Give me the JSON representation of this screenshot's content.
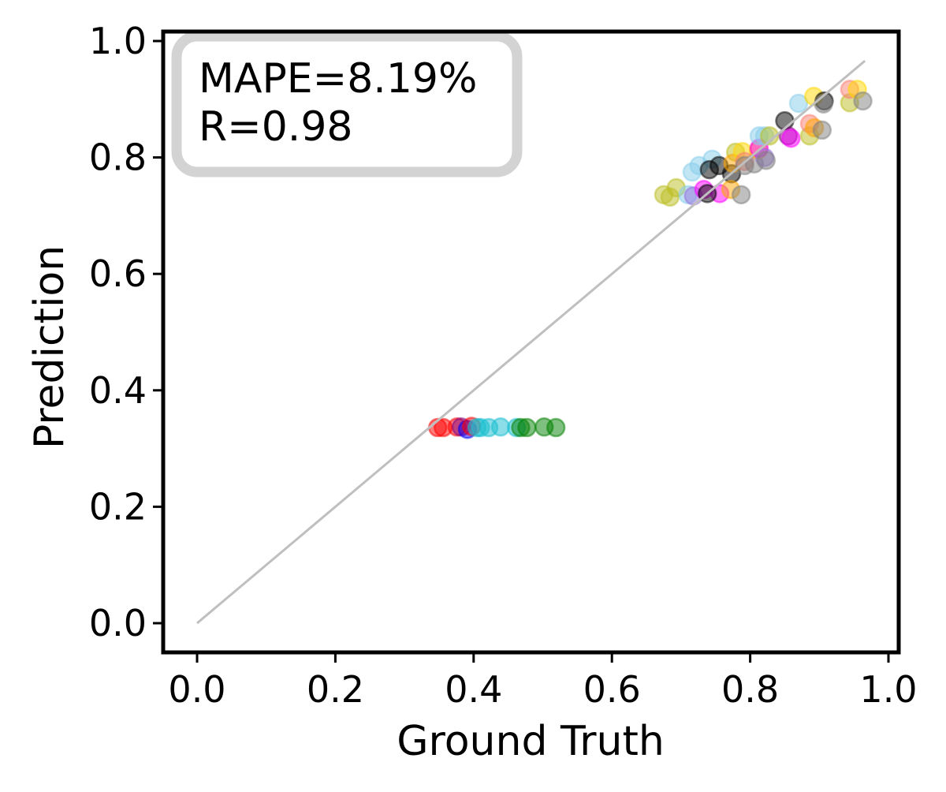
{
  "chart_data": {
    "type": "scatter",
    "xlabel": "Ground Truth",
    "ylabel": "Prediction",
    "xlim": [
      -0.05,
      1.015
    ],
    "ylim": [
      -0.05,
      1.016
    ],
    "xticks": [
      "0.0",
      "0.2",
      "0.4",
      "0.6",
      "0.8",
      "1.0"
    ],
    "yticks": [
      "0.0",
      "0.2",
      "0.4",
      "0.6",
      "0.8",
      "1.0"
    ],
    "grid": false,
    "annotation": {
      "line1": "MAPE=8.19%",
      "line2": "R=0.98",
      "placement": "top-left",
      "border_color": "#d3d3d3"
    },
    "reference_line": {
      "x": [
        0.0,
        0.966
      ],
      "y": [
        0.0,
        0.966
      ],
      "color": "#bfbfbf"
    },
    "marker_alpha": 0.5,
    "points": [
      {
        "x": 0.348,
        "y": 0.336,
        "color": "#ff0000"
      },
      {
        "x": 0.356,
        "y": 0.336,
        "color": "#ff0000"
      },
      {
        "x": 0.376,
        "y": 0.337,
        "color": "#ff0000"
      },
      {
        "x": 0.382,
        "y": 0.337,
        "color": "#800080"
      },
      {
        "x": 0.391,
        "y": 0.333,
        "color": "#0000ff"
      },
      {
        "x": 0.397,
        "y": 0.338,
        "color": "#ff0000"
      },
      {
        "x": 0.405,
        "y": 0.336,
        "color": "#17becf"
      },
      {
        "x": 0.41,
        "y": 0.336,
        "color": "#17becf"
      },
      {
        "x": 0.422,
        "y": 0.336,
        "color": "#17becf"
      },
      {
        "x": 0.439,
        "y": 0.337,
        "color": "#17becf"
      },
      {
        "x": 0.462,
        "y": 0.336,
        "color": "#17becf"
      },
      {
        "x": 0.468,
        "y": 0.336,
        "color": "#008000"
      },
      {
        "x": 0.477,
        "y": 0.336,
        "color": "#008000"
      },
      {
        "x": 0.502,
        "y": 0.337,
        "color": "#008000"
      },
      {
        "x": 0.519,
        "y": 0.336,
        "color": "#008000"
      },
      {
        "x": 0.675,
        "y": 0.736,
        "color": "#bcbd22"
      },
      {
        "x": 0.684,
        "y": 0.732,
        "color": "#bcbd22"
      },
      {
        "x": 0.693,
        "y": 0.748,
        "color": "#bcbd22"
      },
      {
        "x": 0.71,
        "y": 0.736,
        "color": "#87ceeb"
      },
      {
        "x": 0.716,
        "y": 0.775,
        "color": "#87ceeb"
      },
      {
        "x": 0.726,
        "y": 0.786,
        "color": "#87ceeb"
      },
      {
        "x": 0.745,
        "y": 0.797,
        "color": "#87ceeb"
      },
      {
        "x": 0.718,
        "y": 0.734,
        "color": "#9370db"
      },
      {
        "x": 0.733,
        "y": 0.745,
        "color": "#ff00ff"
      },
      {
        "x": 0.756,
        "y": 0.738,
        "color": "#ff00ff"
      },
      {
        "x": 0.738,
        "y": 0.738,
        "color": "#000000"
      },
      {
        "x": 0.741,
        "y": 0.779,
        "color": "#000000"
      },
      {
        "x": 0.755,
        "y": 0.786,
        "color": "#000000"
      },
      {
        "x": 0.773,
        "y": 0.772,
        "color": "#000000"
      },
      {
        "x": 0.772,
        "y": 0.745,
        "color": "#ffa500"
      },
      {
        "x": 0.787,
        "y": 0.736,
        "color": "#808080"
      },
      {
        "x": 0.779,
        "y": 0.809,
        "color": "#bcbd22"
      },
      {
        "x": 0.775,
        "y": 0.79,
        "color": "#ffa500"
      },
      {
        "x": 0.789,
        "y": 0.81,
        "color": "#ffd700"
      },
      {
        "x": 0.792,
        "y": 0.793,
        "color": "#fa8072"
      },
      {
        "x": 0.792,
        "y": 0.786,
        "color": "#808080"
      },
      {
        "x": 0.806,
        "y": 0.789,
        "color": "#808080"
      },
      {
        "x": 0.812,
        "y": 0.813,
        "color": "#ffa500"
      },
      {
        "x": 0.813,
        "y": 0.816,
        "color": "#ff00ff"
      },
      {
        "x": 0.821,
        "y": 0.8,
        "color": "#9370db"
      },
      {
        "x": 0.823,
        "y": 0.795,
        "color": "#808080"
      },
      {
        "x": 0.813,
        "y": 0.837,
        "color": "#87ceeb"
      },
      {
        "x": 0.821,
        "y": 0.837,
        "color": "#87ceeb"
      },
      {
        "x": 0.828,
        "y": 0.837,
        "color": "#bcbd22"
      },
      {
        "x": 0.85,
        "y": 0.863,
        "color": "#000000"
      },
      {
        "x": 0.855,
        "y": 0.837,
        "color": "#800080"
      },
      {
        "x": 0.859,
        "y": 0.833,
        "color": "#ff00ff"
      },
      {
        "x": 0.87,
        "y": 0.893,
        "color": "#87ceeb"
      },
      {
        "x": 0.886,
        "y": 0.837,
        "color": "#bcbd22"
      },
      {
        "x": 0.886,
        "y": 0.858,
        "color": "#fa8072"
      },
      {
        "x": 0.893,
        "y": 0.851,
        "color": "#ffa500"
      },
      {
        "x": 0.904,
        "y": 0.847,
        "color": "#808080"
      },
      {
        "x": 0.892,
        "y": 0.905,
        "color": "#ffd700"
      },
      {
        "x": 0.907,
        "y": 0.897,
        "color": "#000000"
      },
      {
        "x": 0.906,
        "y": 0.892,
        "color": "#808080"
      },
      {
        "x": 0.944,
        "y": 0.894,
        "color": "#bcbd22"
      },
      {
        "x": 0.944,
        "y": 0.917,
        "color": "#fa8072"
      },
      {
        "x": 0.955,
        "y": 0.917,
        "color": "#ffd700"
      },
      {
        "x": 0.963,
        "y": 0.897,
        "color": "#808080"
      }
    ]
  }
}
